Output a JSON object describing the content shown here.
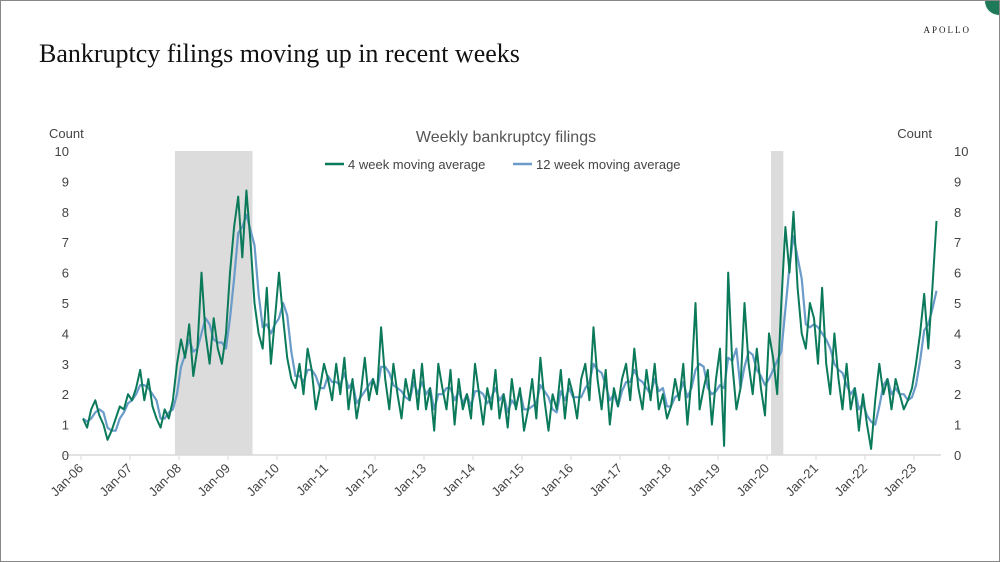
{
  "slide": {
    "title": "Bankruptcy filings moving up in recent weeks",
    "brand": "APOLLO"
  },
  "chart_data": {
    "type": "line",
    "title": "Weekly bankruptcy filings",
    "ylabel_left": "Count",
    "ylabel_right": "Count",
    "ylim": [
      0,
      10
    ],
    "yticks": [
      "0",
      "1",
      "2",
      "3",
      "4",
      "5",
      "6",
      "7",
      "8",
      "9",
      "10"
    ],
    "xticks": [
      "Jan-06",
      "Jan-07",
      "Jan-08",
      "Jan-09",
      "Jan-10",
      "Jan-11",
      "Jan-12",
      "Jan-13",
      "Jan-14",
      "Jan-15",
      "Jan-16",
      "Jan-17",
      "Jan-18",
      "Jan-19",
      "Jan-20",
      "Jan-21",
      "Jan-22",
      "Jan-23"
    ],
    "x_start": "Jan-06",
    "x_frequency": "monthly",
    "legend_position": "top-center",
    "recession_shading": [
      {
        "start": "Dec-07",
        "end": "Jun-09"
      },
      {
        "start": "Feb-20",
        "end": "Apr-20"
      }
    ],
    "colors": {
      "series1": "#0b7a5a",
      "series2": "#6a9bc9",
      "shading": "#dcdcdc"
    },
    "series": [
      {
        "name": "4 week moving average",
        "values": [
          1.2,
          0.9,
          1.5,
          1.8,
          1.3,
          1.0,
          0.5,
          0.8,
          1.2,
          1.6,
          1.5,
          2.0,
          1.8,
          2.2,
          2.8,
          1.8,
          2.5,
          1.6,
          1.2,
          0.9,
          1.5,
          1.2,
          1.8,
          3.0,
          3.8,
          3.2,
          4.3,
          2.6,
          3.5,
          6.0,
          4.0,
          3.0,
          4.5,
          3.5,
          3.0,
          4.0,
          6.0,
          7.5,
          8.5,
          6.5,
          8.7,
          7.0,
          5.0,
          4.0,
          3.5,
          5.5,
          3.0,
          4.5,
          6.0,
          4.5,
          3.2,
          2.5,
          2.2,
          3.0,
          2.0,
          3.5,
          2.8,
          1.5,
          2.2,
          3.0,
          2.5,
          1.8,
          3.0,
          2.0,
          3.2,
          1.5,
          2.5,
          1.2,
          2.0,
          3.2,
          1.8,
          2.5,
          2.0,
          4.2,
          2.5,
          1.5,
          3.0,
          2.0,
          1.2,
          2.5,
          1.8,
          2.8,
          1.5,
          3.0,
          1.5,
          2.2,
          0.8,
          3.0,
          2.2,
          1.5,
          2.8,
          1.0,
          2.5,
          1.5,
          2.0,
          1.2,
          3.0,
          2.0,
          1.0,
          2.2,
          1.5,
          2.8,
          1.2,
          2.0,
          0.9,
          2.5,
          1.5,
          2.2,
          0.8,
          1.5,
          2.5,
          1.2,
          3.2,
          1.8,
          0.8,
          2.0,
          1.5,
          2.8,
          1.2,
          2.5,
          2.0,
          1.2,
          2.5,
          3.0,
          1.8,
          4.2,
          2.5,
          1.5,
          2.8,
          1.0,
          2.2,
          1.6,
          2.5,
          3.0,
          1.8,
          3.5,
          2.2,
          1.5,
          2.8,
          1.8,
          3.0,
          1.5,
          2.0,
          1.2,
          1.6,
          2.5,
          1.8,
          3.0,
          1.0,
          2.5,
          5.0,
          1.5,
          2.2,
          2.8,
          1.0,
          2.5,
          3.5,
          0.3,
          6.0,
          3.0,
          1.5,
          2.2,
          5.0,
          3.0,
          2.0,
          3.5,
          2.2,
          1.3,
          4.0,
          3.2,
          2.0,
          5.0,
          7.5,
          6.0,
          8.0,
          5.5,
          4.0,
          3.5,
          5.0,
          4.5,
          3.0,
          5.5,
          3.0,
          2.0,
          4.0,
          2.5,
          1.5,
          3.0,
          1.5,
          2.2,
          0.8,
          2.0,
          1.0,
          0.2,
          1.8,
          3.0,
          2.0,
          2.5,
          1.5,
          2.5,
          2.0,
          1.5,
          1.8,
          2.2,
          3.0,
          4.0,
          5.3,
          3.5,
          5.5,
          7.7
        ]
      },
      {
        "name": "12 week moving average",
        "values": [
          1.2,
          1.1,
          1.2,
          1.4,
          1.5,
          1.4,
          0.9,
          0.8,
          0.8,
          1.2,
          1.4,
          1.7,
          1.8,
          2.0,
          2.3,
          2.3,
          2.2,
          2.0,
          1.8,
          1.2,
          1.2,
          1.4,
          1.5,
          2.0,
          2.9,
          3.3,
          3.8,
          3.4,
          3.5,
          4.0,
          4.5,
          4.3,
          3.8,
          3.7,
          3.7,
          3.5,
          4.5,
          5.8,
          7.3,
          7.5,
          7.9,
          7.4,
          6.9,
          5.3,
          4.2,
          4.3,
          4.0,
          4.3,
          4.5,
          5.0,
          4.6,
          3.4,
          2.6,
          2.6,
          2.4,
          2.8,
          2.8,
          2.6,
          2.2,
          2.2,
          2.6,
          2.4,
          2.4,
          2.3,
          2.7,
          2.2,
          2.4,
          1.7,
          1.9,
          2.1,
          2.3,
          2.5,
          2.1,
          2.9,
          2.9,
          2.7,
          2.3,
          2.2,
          2.1,
          1.9,
          1.8,
          2.4,
          2.0,
          2.4,
          2.0,
          2.2,
          1.5,
          2.0,
          2.0,
          2.2,
          2.2,
          1.8,
          2.1,
          1.7,
          2.0,
          1.6,
          2.1,
          2.1,
          2.0,
          1.7,
          1.9,
          2.2,
          1.8,
          2.0,
          1.4,
          1.8,
          1.6,
          2.1,
          1.5,
          1.5,
          1.6,
          1.7,
          2.3,
          2.1,
          1.9,
          1.5,
          1.4,
          2.1,
          1.8,
          2.2,
          1.9,
          1.9,
          1.9,
          2.2,
          2.4,
          3.0,
          2.8,
          2.7,
          2.3,
          1.8,
          2.0,
          1.6,
          2.1,
          2.4,
          2.4,
          2.8,
          2.5,
          2.4,
          2.2,
          2.0,
          2.5,
          2.1,
          2.2,
          1.6,
          1.6,
          1.9,
          2.0,
          2.4,
          1.9,
          2.2,
          2.8,
          3.0,
          2.9,
          2.2,
          2.0,
          2.1,
          2.3,
          2.2,
          3.2,
          3.1,
          3.5,
          2.2,
          2.9,
          3.4,
          3.3,
          2.8,
          2.6,
          2.3,
          2.5,
          2.8,
          3.1,
          3.4,
          4.8,
          6.2,
          7.2,
          6.5,
          5.8,
          4.3,
          4.2,
          4.3,
          4.2,
          4.0,
          3.8,
          3.5,
          3.0,
          2.8,
          2.7,
          2.3,
          2.0,
          2.2,
          1.5,
          1.7,
          1.3,
          1.1,
          1.0,
          1.6,
          2.3,
          2.5,
          2.0,
          2.2,
          2.0,
          2.0,
          1.8,
          1.9,
          2.3,
          3.1,
          4.1,
          4.3,
          4.8,
          5.4
        ]
      }
    ]
  }
}
